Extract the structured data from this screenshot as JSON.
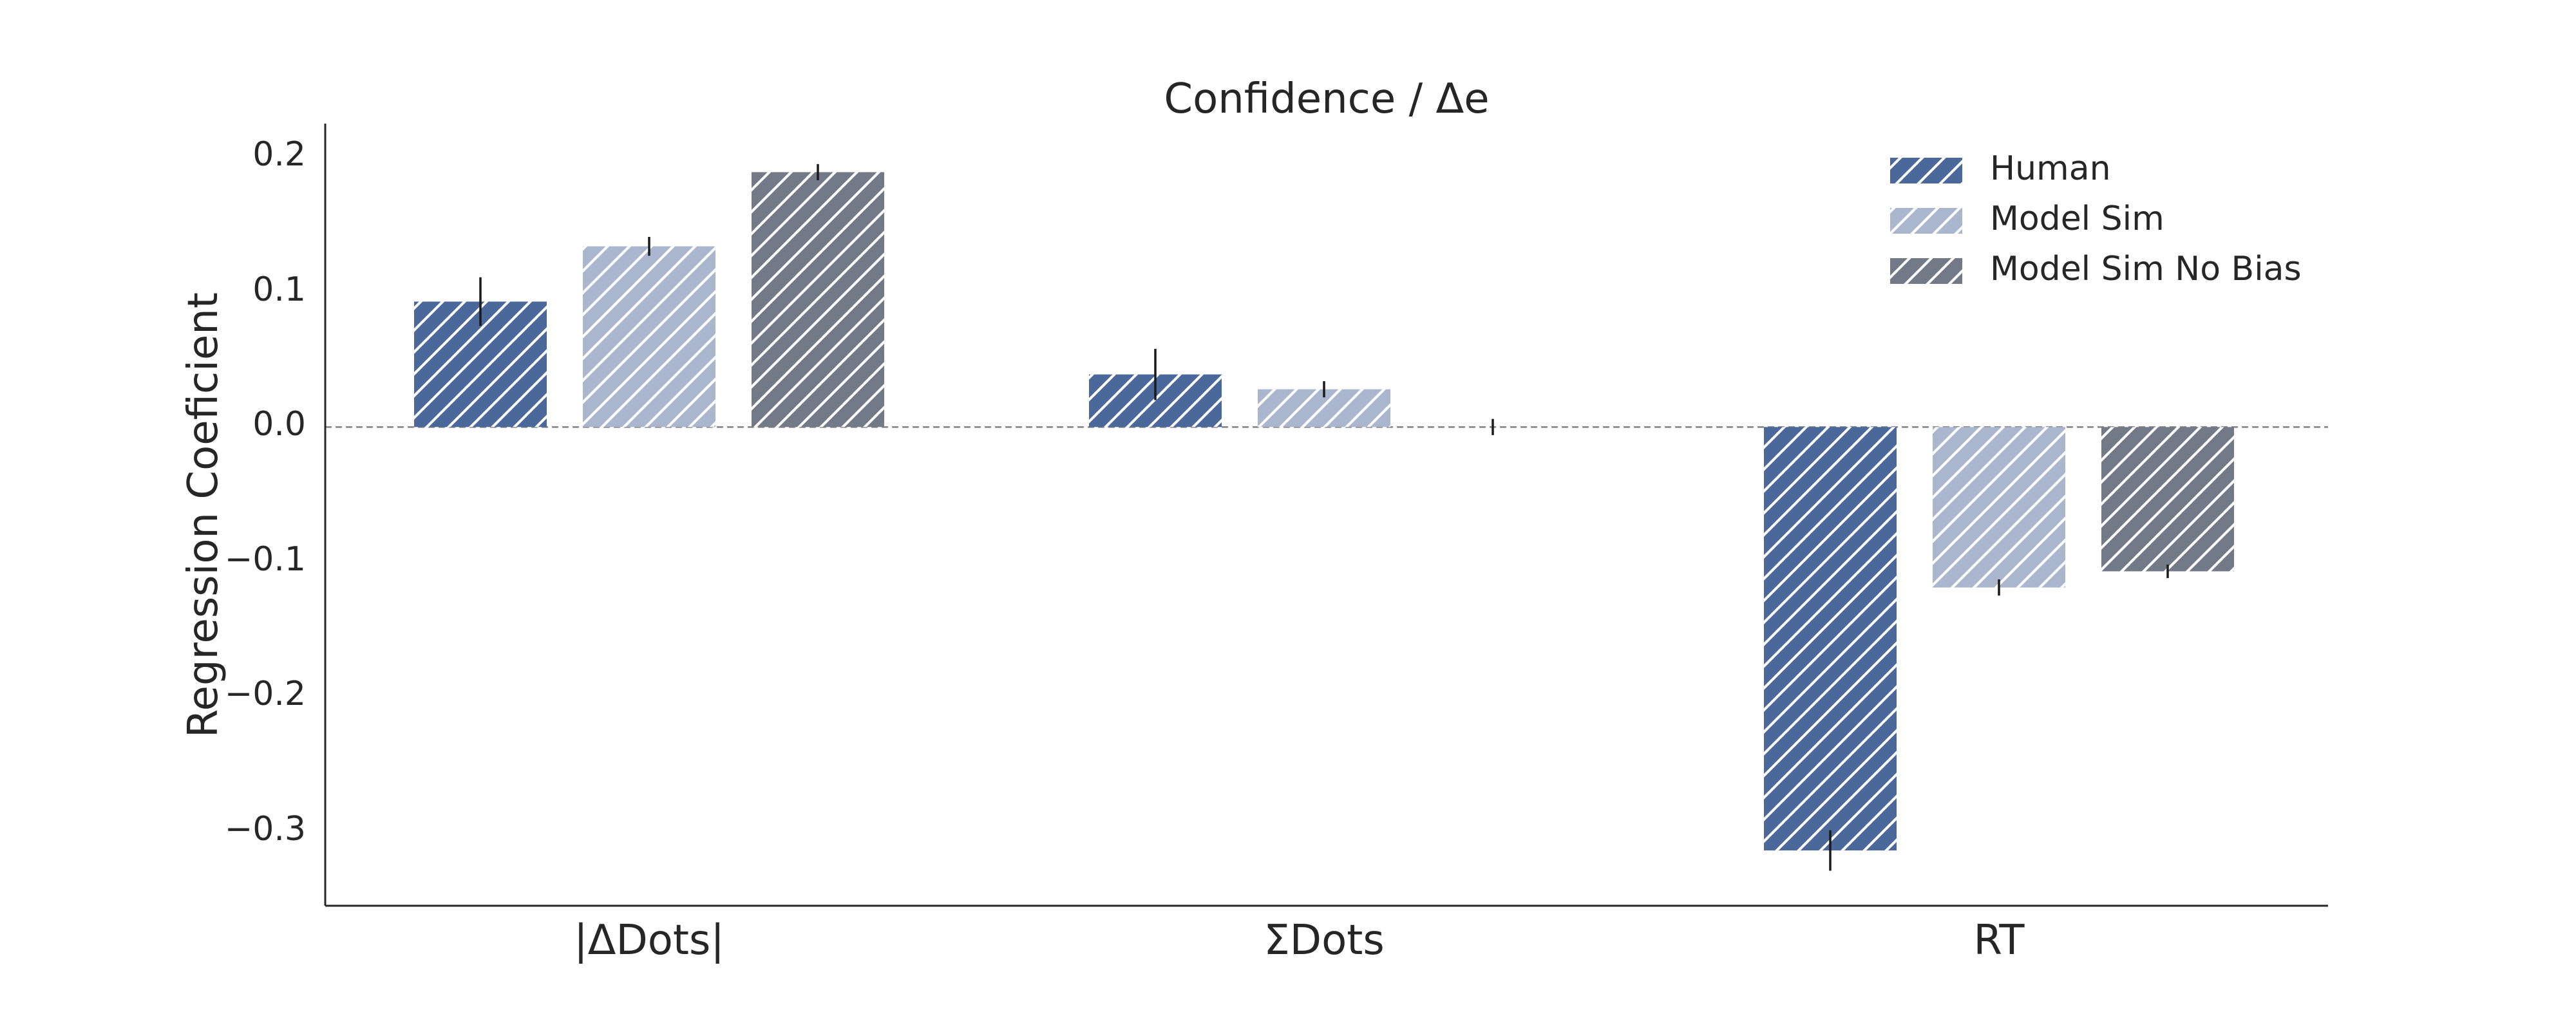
{
  "chart_data": {
    "type": "bar",
    "title": "Confidence / Δe",
    "xlabel": "",
    "ylabel": "Regression Coeficient",
    "categories": [
      "|ΔDots|",
      "ΣDots",
      "RT"
    ],
    "ylim": [
      -0.355,
      0.225
    ],
    "yticks": [
      0.2,
      0.1,
      0.0,
      -0.1,
      -0.2,
      -0.3
    ],
    "ytick_labels": [
      "0.2",
      "0.1",
      "0.0",
      "−0.1",
      "−0.2",
      "−0.3"
    ],
    "grid": false,
    "zero_line": "dashed",
    "legend_position": "top-right",
    "hatch": "diagonal",
    "series": [
      {
        "name": "Human",
        "color": "#4a6899",
        "values": [
          0.093,
          0.039,
          -0.314
        ],
        "errors": [
          0.018,
          0.019,
          0.015
        ]
      },
      {
        "name": "Model Sim",
        "color": "#aab6cd",
        "values": [
          0.134,
          0.028,
          -0.119
        ],
        "errors": [
          0.007,
          0.006,
          0.006
        ]
      },
      {
        "name": "Model Sim No Bias",
        "color": "#737a87",
        "values": [
          0.189,
          0.0,
          -0.107
        ],
        "errors": [
          0.006,
          0.006,
          0.005
        ]
      }
    ]
  }
}
